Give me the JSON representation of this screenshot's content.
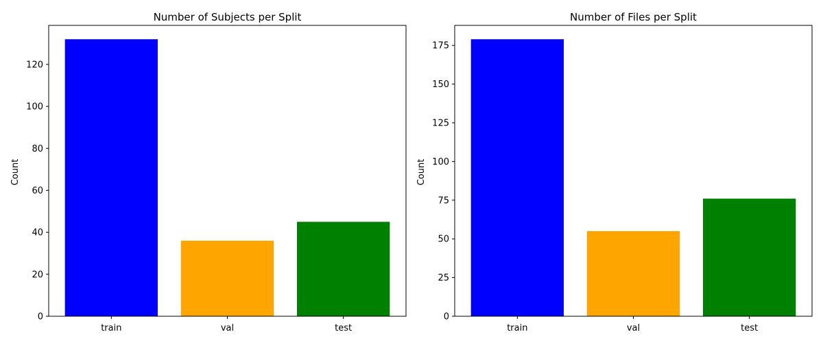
{
  "chart_data": [
    {
      "type": "bar",
      "title": "Number of Subjects per Split",
      "xlabel": "",
      "ylabel": "Count",
      "categories": [
        "train",
        "val",
        "test"
      ],
      "values": [
        132,
        36,
        45
      ],
      "colors": [
        "#0000ff",
        "#ffa500",
        "#008000"
      ],
      "ylim": [
        0,
        138.6
      ],
      "yticks": [
        0,
        20,
        40,
        60,
        80,
        100,
        120
      ],
      "grid": false,
      "legend": "none"
    },
    {
      "type": "bar",
      "title": "Number of Files per Split",
      "xlabel": "",
      "ylabel": "Count",
      "categories": [
        "train",
        "val",
        "test"
      ],
      "values": [
        179,
        55,
        76
      ],
      "colors": [
        "#0000ff",
        "#ffa500",
        "#008000"
      ],
      "ylim": [
        0,
        187.95
      ],
      "yticks": [
        0,
        25,
        50,
        75,
        100,
        125,
        150,
        175
      ],
      "grid": false,
      "legend": "none"
    }
  ]
}
